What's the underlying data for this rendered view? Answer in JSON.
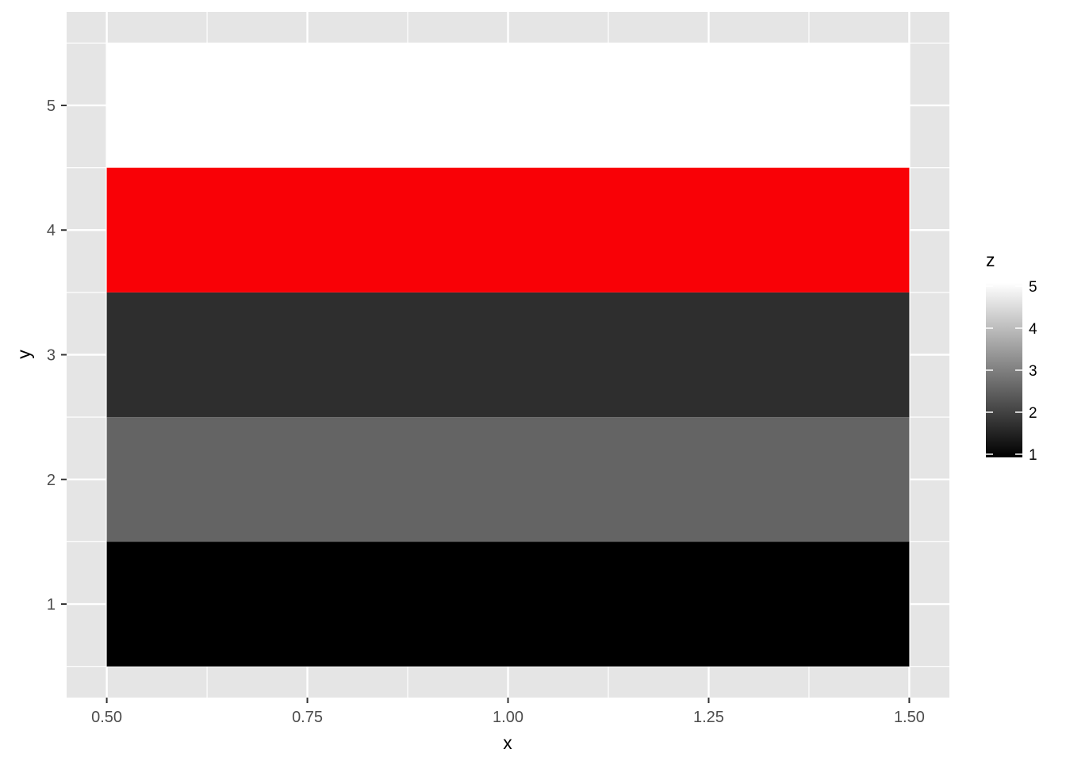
{
  "chart_data": {
    "type": "heatmap",
    "title": "",
    "xlabel": "x",
    "ylabel": "y",
    "xlim": [
      0.45,
      1.55
    ],
    "ylim": [
      0.25,
      5.75
    ],
    "x_ticks": [
      "0.50",
      "0.75",
      "1.00",
      "1.25",
      "1.50"
    ],
    "x_tick_values": [
      0.5,
      0.75,
      1.0,
      1.25,
      1.5
    ],
    "y_ticks": [
      "1",
      "2",
      "3",
      "4",
      "5"
    ],
    "y_tick_values": [
      1,
      2,
      3,
      4,
      5
    ],
    "grid": true,
    "tiles": [
      {
        "x": 1,
        "y": 1,
        "z": 1,
        "fill": "#000000"
      },
      {
        "x": 1,
        "y": 2,
        "z": 2,
        "fill": "#646464"
      },
      {
        "x": 1,
        "y": 3,
        "z": 3,
        "fill": "#2e2e2e"
      },
      {
        "x": 1,
        "y": 4,
        "z": 4,
        "fill": "#f90106"
      },
      {
        "x": 1,
        "y": 5,
        "z": 5,
        "fill": "#ffffff"
      }
    ],
    "tile_width": 1,
    "tile_height": 1,
    "legend": {
      "title": "z",
      "position": "right",
      "range": [
        1,
        5
      ],
      "colors": [
        "#000000",
        "#ffffff"
      ],
      "ticks": [
        "1",
        "2",
        "3",
        "4",
        "5"
      ]
    },
    "panel_background": "#e5e5e5",
    "grid_color": "#ffffff"
  }
}
